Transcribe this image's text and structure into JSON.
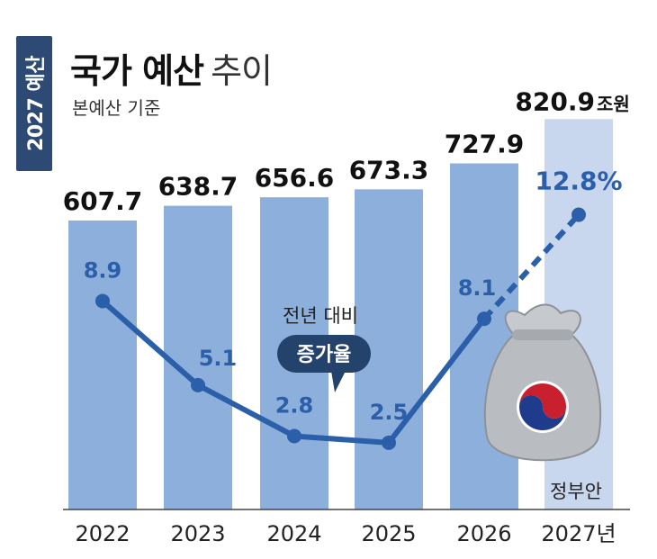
{
  "header": {
    "tag": "2027 예산",
    "title_bold": "국가 예산",
    "title_light": "추이",
    "subtitle": "본예산 기준"
  },
  "chart_data": {
    "type": "bar",
    "categories": [
      "2022",
      "2023",
      "2024",
      "2025",
      "2026",
      "2027년"
    ],
    "bar_values": [
      607.7,
      638.7,
      656.6,
      673.3,
      727.9,
      820.9
    ],
    "bar_labels": [
      "607.7",
      "638.7",
      "656.6",
      "673.3",
      "727.9",
      "820.9"
    ],
    "last_bar_unit": "조원",
    "last_bar_note": "정부안",
    "growth_line": {
      "type": "line",
      "values": [
        8.9,
        5.1,
        2.8,
        2.5,
        8.1,
        12.8
      ],
      "labels": [
        "8.9",
        "5.1",
        "2.8",
        "2.5",
        "8.1",
        "12.8%"
      ],
      "dashed_from_index": 4
    },
    "callout": {
      "line1": "전년 대비",
      "line2": "증가율"
    },
    "colors": {
      "bar": "#8dafdc",
      "bar_highlight": "#c9d7ee",
      "line": "#2b5faa",
      "tag": "#2c4a73",
      "callout_bg": "#24436c",
      "money_bag": "#b9bcc0"
    }
  }
}
